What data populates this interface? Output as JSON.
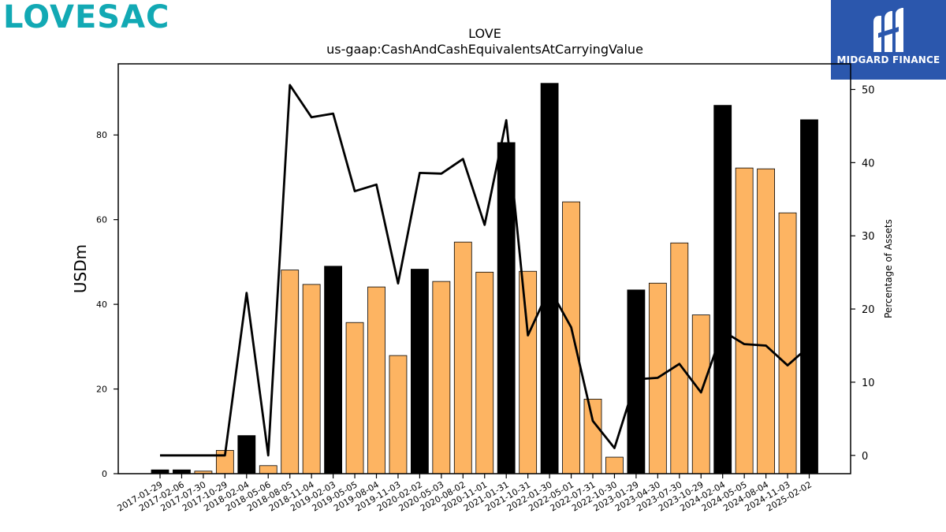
{
  "branding": {
    "left_logo_text": "LOVESAC",
    "right_logo_text": "MIDGARD FINANCE",
    "right_logo_icon": "midgard-m-icon",
    "left_color": "#12a9b4",
    "right_bg": "#2b57ad"
  },
  "chart_data": {
    "type": "bar",
    "title": "LOVE",
    "subtitle": "us-gaap:CashAndCashEquivalentsAtCarryingValue",
    "ylabel": "USDm",
    "y2label": "Percentage of Assets",
    "ylim": [
      0,
      96.8
    ],
    "y2lim": [
      -2.5,
      53.5
    ],
    "yticks": [
      0,
      20,
      40,
      60,
      80
    ],
    "y2ticks": [
      0,
      10,
      20,
      30,
      40,
      50
    ],
    "colors": {
      "annual": "#000000",
      "quarterly": "#fdb462",
      "line": "#000000"
    },
    "categories": [
      "2017-01-29",
      "2017-02-06",
      "2017-07-30",
      "2017-10-29",
      "2018-02-04",
      "2018-05-06",
      "2018-08-05",
      "2018-11-04",
      "2019-02-03",
      "2019-05-05",
      "2019-08-04",
      "2019-11-03",
      "2020-02-02",
      "2020-05-03",
      "2020-08-02",
      "2020-11-01",
      "2021-01-31",
      "2021-10-31",
      "2022-01-30",
      "2022-05-01",
      "2022-07-31",
      "2022-10-30",
      "2023-01-29",
      "2023-04-30",
      "2023-07-30",
      "2023-10-29",
      "2024-02-04",
      "2024-05-05",
      "2024-08-04",
      "2024-11-03",
      "2025-02-02"
    ],
    "values": [
      0.9,
      0.9,
      0.6,
      5.5,
      9.0,
      1.9,
      48.1,
      44.7,
      49.0,
      35.7,
      44.1,
      27.9,
      48.3,
      45.4,
      54.7,
      47.6,
      78.2,
      47.8,
      92.2,
      64.2,
      17.6,
      3.9,
      43.4,
      45.0,
      54.5,
      37.5,
      87.0,
      72.2,
      72.0,
      61.6,
      83.6
    ],
    "is_annual": [
      true,
      true,
      false,
      false,
      true,
      false,
      false,
      false,
      true,
      false,
      false,
      false,
      true,
      false,
      false,
      false,
      true,
      false,
      true,
      false,
      false,
      false,
      true,
      false,
      false,
      false,
      true,
      false,
      false,
      false,
      true
    ],
    "pct_of_assets": [
      0.0,
      0.0,
      0.0,
      0.0,
      22.2,
      0.0,
      50.6,
      46.2,
      46.7,
      36.1,
      37.0,
      23.5,
      38.6,
      38.5,
      40.5,
      31.5,
      45.8,
      16.4,
      22.8,
      17.5,
      4.7,
      1.0,
      10.4,
      10.6,
      12.5,
      8.6,
      17.0,
      15.2,
      15.0,
      12.3,
      14.9
    ]
  }
}
